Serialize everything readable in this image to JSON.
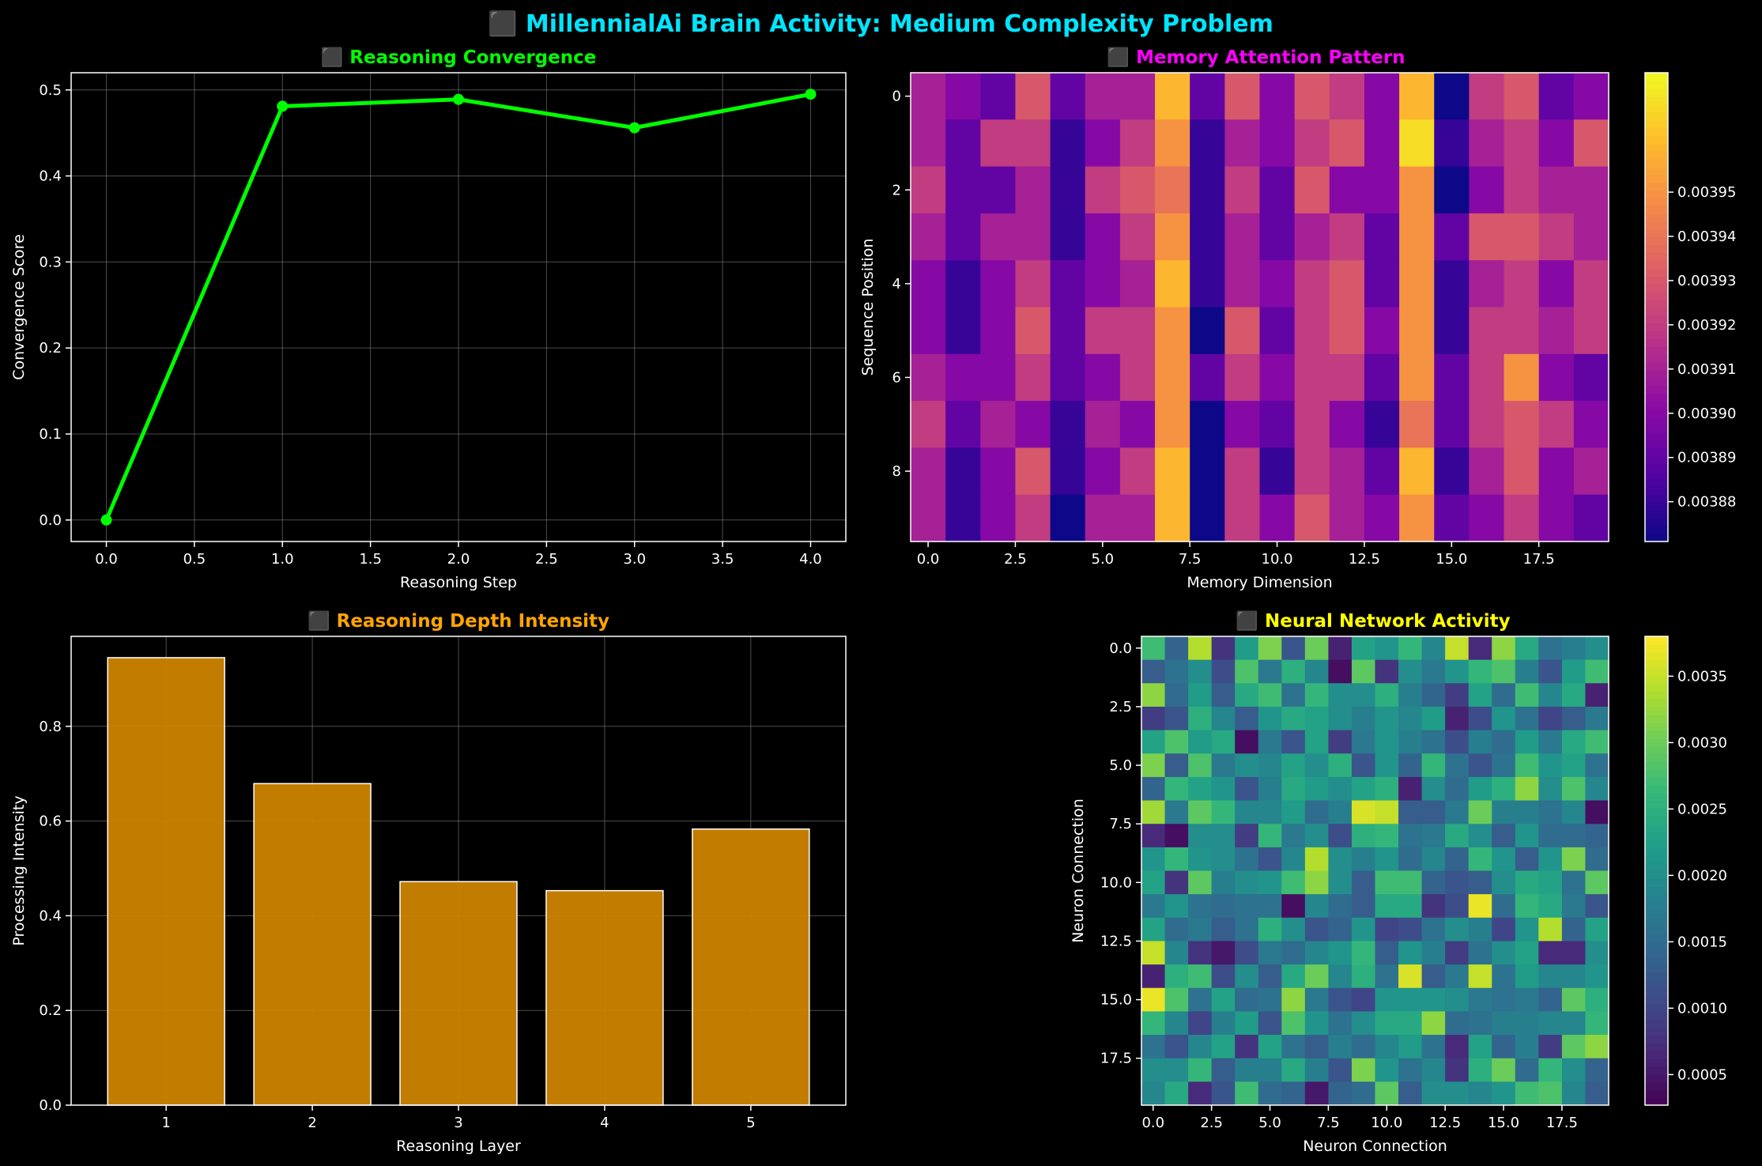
{
  "title": "⬛ MillennialAi Brain Activity: Medium Complexity Problem",
  "colors": {
    "background": "#000000",
    "title": "#00e5ff",
    "axis": "#ffffff",
    "grid": "#808080",
    "line": "#00ff00",
    "bar": "#cc8400",
    "bar_edge": "#ffffff",
    "panel_title_convergence": "#00ff00",
    "panel_title_memory": "#ff00ff",
    "panel_title_depth": "#ffa500",
    "panel_title_neural": "#ffff00"
  },
  "chart_data": [
    {
      "id": "convergence",
      "type": "line",
      "title": "⬛ Reasoning Convergence",
      "xlabel": "Reasoning Step",
      "ylabel": "Convergence Score",
      "x": [
        0,
        1,
        2,
        3,
        4
      ],
      "values": [
        0.0,
        0.481,
        0.489,
        0.456,
        0.495
      ],
      "xlim": [
        -0.2,
        4.2
      ],
      "ylim": [
        -0.025,
        0.52
      ],
      "xticks": [
        0.0,
        0.5,
        1.0,
        1.5,
        2.0,
        2.5,
        3.0,
        3.5,
        4.0
      ],
      "xtick_labels": [
        "0.0",
        "0.5",
        "1.0",
        "1.5",
        "2.0",
        "2.5",
        "3.0",
        "3.5",
        "4.0"
      ],
      "yticks": [
        0.0,
        0.1,
        0.2,
        0.3,
        0.4,
        0.5
      ],
      "ytick_labels": [
        "0.0",
        "0.1",
        "0.2",
        "0.3",
        "0.4",
        "0.5"
      ],
      "grid": true,
      "marker": "circle"
    },
    {
      "id": "memory",
      "type": "heatmap",
      "title": "⬛ Memory Attention Pattern",
      "xlabel": "Memory Dimension",
      "ylabel": "Sequence Position",
      "colormap": "plasma",
      "vmin": 0.003871,
      "vmax": 0.003977,
      "colorbar_ticks": [
        0.00388,
        0.00389,
        0.0039,
        0.00391,
        0.00392,
        0.00393,
        0.00394,
        0.00395
      ],
      "colorbar_tick_labels": [
        "0.00388",
        "0.00389",
        "0.00390",
        "0.00391",
        "0.00392",
        "0.00393",
        "0.00394",
        "0.00395"
      ],
      "xticks": [
        0,
        2.5,
        5,
        7.5,
        10,
        12.5,
        15,
        17.5
      ],
      "xtick_labels": [
        "0.0",
        "2.5",
        "5.0",
        "7.5",
        "10.0",
        "12.5",
        "15.0",
        "17.5"
      ],
      "yticks": [
        0,
        2,
        4,
        6,
        8
      ],
      "ytick_labels": [
        "0",
        "2",
        "4",
        "6",
        "8"
      ],
      "values": [
        [
          0.00391,
          0.0039,
          0.00389,
          0.00393,
          0.00389,
          0.00391,
          0.00391,
          0.00396,
          0.00389,
          0.00393,
          0.0039,
          0.00393,
          0.00392,
          0.0039,
          0.00396,
          0.00387,
          0.00392,
          0.00393,
          0.00389,
          0.0039
        ],
        [
          0.00391,
          0.00389,
          0.00392,
          0.00392,
          0.00388,
          0.0039,
          0.00392,
          0.00395,
          0.00388,
          0.00391,
          0.0039,
          0.00392,
          0.00393,
          0.0039,
          0.00397,
          0.00388,
          0.00391,
          0.00392,
          0.0039,
          0.00393
        ],
        [
          0.00392,
          0.00389,
          0.00389,
          0.00391,
          0.00388,
          0.00392,
          0.00393,
          0.00394,
          0.00388,
          0.00392,
          0.00389,
          0.00393,
          0.0039,
          0.0039,
          0.00395,
          0.00387,
          0.0039,
          0.00392,
          0.00391,
          0.00391
        ],
        [
          0.00391,
          0.00389,
          0.00391,
          0.00391,
          0.00388,
          0.0039,
          0.00392,
          0.00395,
          0.00388,
          0.00391,
          0.00389,
          0.00391,
          0.00392,
          0.00389,
          0.00395,
          0.00389,
          0.00393,
          0.00393,
          0.00392,
          0.00391
        ],
        [
          0.0039,
          0.00388,
          0.0039,
          0.00392,
          0.00389,
          0.0039,
          0.00391,
          0.00396,
          0.00388,
          0.00391,
          0.0039,
          0.00392,
          0.00393,
          0.00389,
          0.00395,
          0.00388,
          0.00391,
          0.00392,
          0.0039,
          0.00392
        ],
        [
          0.0039,
          0.00388,
          0.0039,
          0.00393,
          0.00389,
          0.00392,
          0.00392,
          0.00395,
          0.00387,
          0.00393,
          0.00389,
          0.00392,
          0.00393,
          0.0039,
          0.00395,
          0.00388,
          0.00392,
          0.00392,
          0.00391,
          0.00392
        ],
        [
          0.00391,
          0.0039,
          0.0039,
          0.00392,
          0.00389,
          0.0039,
          0.00392,
          0.00395,
          0.00389,
          0.00392,
          0.0039,
          0.00392,
          0.00392,
          0.00389,
          0.00395,
          0.00389,
          0.00392,
          0.00395,
          0.0039,
          0.00389
        ],
        [
          0.00392,
          0.00389,
          0.00391,
          0.0039,
          0.00388,
          0.00391,
          0.0039,
          0.00395,
          0.00387,
          0.0039,
          0.00389,
          0.00392,
          0.0039,
          0.00388,
          0.00394,
          0.00389,
          0.00392,
          0.00393,
          0.00392,
          0.0039
        ],
        [
          0.00391,
          0.00388,
          0.0039,
          0.00393,
          0.00388,
          0.0039,
          0.00392,
          0.00396,
          0.00387,
          0.00392,
          0.00388,
          0.00392,
          0.00391,
          0.00389,
          0.00396,
          0.00388,
          0.00391,
          0.00393,
          0.0039,
          0.00391
        ],
        [
          0.00391,
          0.00388,
          0.0039,
          0.00392,
          0.00387,
          0.00391,
          0.00391,
          0.00396,
          0.00387,
          0.00392,
          0.0039,
          0.00393,
          0.00391,
          0.0039,
          0.00395,
          0.00389,
          0.0039,
          0.00392,
          0.0039,
          0.00389
        ]
      ]
    },
    {
      "id": "depth",
      "type": "bar",
      "title": "⬛ Reasoning Depth Intensity",
      "xlabel": "Reasoning Layer",
      "ylabel": "Processing Intensity",
      "categories": [
        "1",
        "2",
        "3",
        "4",
        "5"
      ],
      "values": [
        0.945,
        0.679,
        0.472,
        0.453,
        0.583
      ],
      "ylim": [
        0,
        0.99
      ],
      "yticks": [
        0.0,
        0.2,
        0.4,
        0.6,
        0.8
      ],
      "ytick_labels": [
        "0.0",
        "0.2",
        "0.4",
        "0.6",
        "0.8"
      ],
      "grid": true
    },
    {
      "id": "neural",
      "type": "heatmap",
      "title": "⬛ Neural Network Activity",
      "xlabel": "Neuron Connection",
      "ylabel": "Neuron Connection",
      "colormap": "viridis",
      "vmin": 0.00027,
      "vmax": 0.0038,
      "colorbar_ticks": [
        0.0005,
        0.001,
        0.0015,
        0.002,
        0.0025,
        0.003,
        0.0035
      ],
      "colorbar_tick_labels": [
        "0.0005",
        "0.0010",
        "0.0015",
        "0.0020",
        "0.0025",
        "0.0030",
        "0.0035"
      ],
      "xticks": [
        0,
        2.5,
        5,
        7.5,
        10,
        12.5,
        15,
        17.5
      ],
      "xtick_labels": [
        "0.0",
        "2.5",
        "5.0",
        "7.5",
        "10.0",
        "12.5",
        "15.0",
        "17.5"
      ],
      "yticks": [
        0,
        2.5,
        5,
        7.5,
        10,
        12.5,
        15,
        17.5
      ],
      "ytick_labels": [
        "0.0",
        "2.5",
        "5.0",
        "7.5",
        "10.0",
        "12.5",
        "15.0",
        "17.5"
      ],
      "values": [
        [
          0.0027,
          0.0014,
          0.0034,
          0.0008,
          0.0022,
          0.0031,
          0.0012,
          0.003,
          0.0006,
          0.0023,
          0.0021,
          0.0026,
          0.0019,
          0.0035,
          0.0007,
          0.0032,
          0.0024,
          0.0016,
          0.0018,
          0.002
        ],
        [
          0.0013,
          0.0016,
          0.002,
          0.0011,
          0.0028,
          0.0017,
          0.0025,
          0.0019,
          0.0004,
          0.0029,
          0.0008,
          0.002,
          0.0017,
          0.0021,
          0.0026,
          0.0028,
          0.0018,
          0.0012,
          0.0022,
          0.0027
        ],
        [
          0.0032,
          0.0015,
          0.0022,
          0.0013,
          0.0024,
          0.0027,
          0.0016,
          0.0026,
          0.002,
          0.002,
          0.0025,
          0.0018,
          0.0014,
          0.0009,
          0.0023,
          0.0015,
          0.0027,
          0.0019,
          0.0024,
          0.0006
        ],
        [
          0.0009,
          0.0012,
          0.0025,
          0.0019,
          0.0013,
          0.0021,
          0.0024,
          0.0023,
          0.002,
          0.0018,
          0.0021,
          0.0019,
          0.0022,
          0.0006,
          0.0011,
          0.0021,
          0.0016,
          0.001,
          0.0013,
          0.0017
        ],
        [
          0.0023,
          0.0028,
          0.0022,
          0.0024,
          0.0004,
          0.0017,
          0.0012,
          0.0023,
          0.0009,
          0.0017,
          0.0021,
          0.0018,
          0.0016,
          0.0011,
          0.0018,
          0.0015,
          0.0022,
          0.0017,
          0.0024,
          0.0027
        ],
        [
          0.0031,
          0.0013,
          0.0028,
          0.0017,
          0.002,
          0.0019,
          0.0023,
          0.002,
          0.0025,
          0.0012,
          0.0021,
          0.0014,
          0.0026,
          0.0016,
          0.0012,
          0.0016,
          0.0027,
          0.0021,
          0.0023,
          0.0016
        ],
        [
          0.0014,
          0.0026,
          0.0023,
          0.0021,
          0.0012,
          0.0018,
          0.0024,
          0.0022,
          0.002,
          0.0023,
          0.0025,
          0.0006,
          0.002,
          0.0015,
          0.0022,
          0.0025,
          0.0032,
          0.002,
          0.0028,
          0.0019
        ],
        [
          0.0033,
          0.0017,
          0.0029,
          0.0026,
          0.0019,
          0.0019,
          0.0022,
          0.0015,
          0.0018,
          0.0036,
          0.0035,
          0.0013,
          0.0013,
          0.0017,
          0.003,
          0.0018,
          0.0018,
          0.0016,
          0.0019,
          0.0004
        ],
        [
          0.0007,
          0.0004,
          0.002,
          0.002,
          0.0009,
          0.0026,
          0.0017,
          0.002,
          0.0011,
          0.0025,
          0.0026,
          0.0016,
          0.0017,
          0.0024,
          0.002,
          0.0013,
          0.0021,
          0.0015,
          0.0015,
          0.0014
        ],
        [
          0.0021,
          0.0026,
          0.0021,
          0.002,
          0.0016,
          0.0012,
          0.0019,
          0.0034,
          0.002,
          0.0018,
          0.0021,
          0.0015,
          0.0019,
          0.0014,
          0.0026,
          0.0021,
          0.0013,
          0.0021,
          0.0031,
          0.0015
        ],
        [
          0.0023,
          0.0008,
          0.0029,
          0.0018,
          0.002,
          0.0021,
          0.0027,
          0.0032,
          0.002,
          0.0013,
          0.0027,
          0.0027,
          0.0014,
          0.0012,
          0.0013,
          0.002,
          0.0024,
          0.0023,
          0.0016,
          0.0029
        ],
        [
          0.0017,
          0.0021,
          0.0016,
          0.0015,
          0.0016,
          0.0016,
          0.0004,
          0.0019,
          0.0015,
          0.0013,
          0.0024,
          0.0024,
          0.0008,
          0.0011,
          0.0037,
          0.0015,
          0.0026,
          0.0024,
          0.0017,
          0.0012
        ],
        [
          0.0023,
          0.0015,
          0.0017,
          0.0013,
          0.0016,
          0.0025,
          0.002,
          0.0012,
          0.0014,
          0.0021,
          0.001,
          0.0011,
          0.0016,
          0.002,
          0.0018,
          0.001,
          0.0021,
          0.0034,
          0.0014,
          0.0023
        ],
        [
          0.0035,
          0.0019,
          0.0008,
          0.0005,
          0.0011,
          0.0017,
          0.0015,
          0.0019,
          0.0021,
          0.0026,
          0.0013,
          0.0021,
          0.0018,
          0.0009,
          0.0016,
          0.002,
          0.0023,
          0.0007,
          0.0007,
          0.002
        ],
        [
          0.0006,
          0.0025,
          0.0027,
          0.0011,
          0.002,
          0.0013,
          0.0024,
          0.003,
          0.0019,
          0.0025,
          0.0016,
          0.0036,
          0.0013,
          0.0017,
          0.0035,
          0.0016,
          0.0022,
          0.0019,
          0.0019,
          0.0021
        ],
        [
          0.0037,
          0.0028,
          0.0016,
          0.0023,
          0.0015,
          0.0016,
          0.0032,
          0.0017,
          0.0012,
          0.001,
          0.0021,
          0.0021,
          0.0021,
          0.002,
          0.0017,
          0.0016,
          0.0017,
          0.0014,
          0.0029,
          0.0025
        ],
        [
          0.0026,
          0.0019,
          0.001,
          0.0018,
          0.0022,
          0.0012,
          0.0028,
          0.0021,
          0.0016,
          0.002,
          0.0024,
          0.0024,
          0.0032,
          0.0015,
          0.0016,
          0.0018,
          0.0018,
          0.0019,
          0.0019,
          0.0026
        ],
        [
          0.0016,
          0.0012,
          0.0019,
          0.0023,
          0.0008,
          0.0023,
          0.0016,
          0.0013,
          0.0018,
          0.0015,
          0.0019,
          0.0022,
          0.0016,
          0.0007,
          0.0023,
          0.0014,
          0.0018,
          0.0009,
          0.0029,
          0.0032
        ],
        [
          0.002,
          0.002,
          0.0026,
          0.0013,
          0.0018,
          0.0018,
          0.0024,
          0.0018,
          0.0012,
          0.0031,
          0.0021,
          0.0016,
          0.0019,
          0.0008,
          0.0025,
          0.003,
          0.0015,
          0.0026,
          0.002,
          0.0014
        ],
        [
          0.0019,
          0.0024,
          0.0007,
          0.0012,
          0.0027,
          0.0015,
          0.0014,
          0.0005,
          0.0014,
          0.0015,
          0.0029,
          0.0013,
          0.002,
          0.002,
          0.0019,
          0.0021,
          0.0027,
          0.0028,
          0.0019,
          0.0013
        ]
      ]
    }
  ]
}
